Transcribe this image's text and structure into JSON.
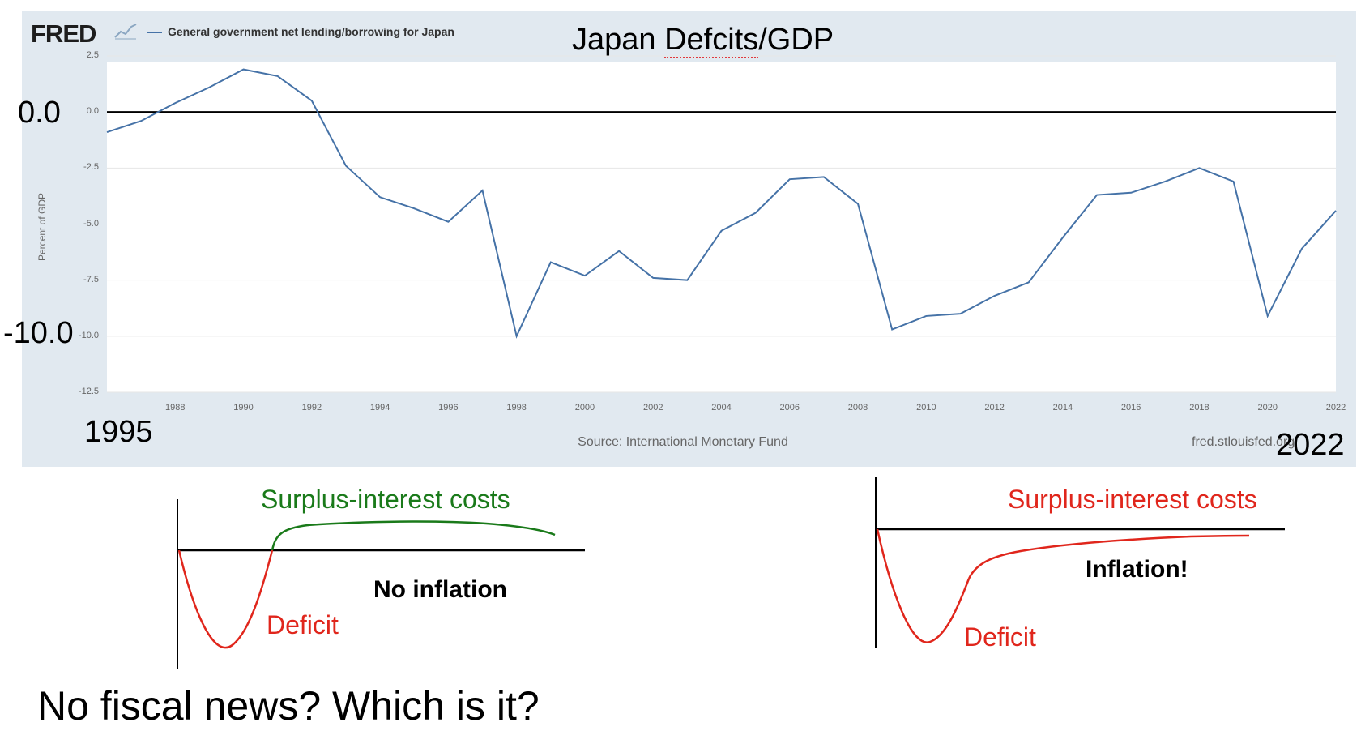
{
  "chart_data": {
    "type": "line",
    "title": "General government net lending/borrowing for Japan",
    "overlay_title": "Japan Defcits/GDP",
    "ylabel": "Percent of GDP",
    "source": "Source: International Monetary Fund",
    "site": "fred.stlouisfed.org",
    "brand": "FRED",
    "ylim": [
      -12.5,
      2.5
    ],
    "xlim": [
      1986,
      2022
    ],
    "yticks": [
      "2.5",
      "0.0",
      "-2.5",
      "-5.0",
      "-7.5",
      "-10.0",
      "-12.5"
    ],
    "xticks": [
      "1988",
      "1990",
      "1992",
      "1994",
      "1996",
      "1998",
      "2000",
      "2002",
      "2004",
      "2006",
      "2008",
      "2010",
      "2012",
      "2014",
      "2016",
      "2018",
      "2020",
      "2022"
    ],
    "grid": true,
    "line_color": "#4572a7",
    "series": [
      {
        "name": "General government net lending/borrowing for Japan",
        "x": [
          1986,
          1987,
          1988,
          1989,
          1990,
          1991,
          1992,
          1993,
          1994,
          1995,
          1996,
          1997,
          1998,
          1999,
          2000,
          2001,
          2002,
          2003,
          2004,
          2005,
          2006,
          2007,
          2008,
          2009,
          2010,
          2011,
          2012,
          2013,
          2014,
          2015,
          2016,
          2017,
          2018,
          2019,
          2020,
          2021,
          2022
        ],
        "y": [
          -0.9,
          -0.4,
          0.4,
          1.1,
          1.9,
          1.6,
          0.5,
          -2.4,
          -3.8,
          -4.3,
          -4.9,
          -3.5,
          -10.0,
          -6.7,
          -7.3,
          -6.2,
          -7.4,
          -7.5,
          -5.3,
          -4.5,
          -3.0,
          -2.9,
          -4.1,
          -9.7,
          -9.1,
          -9.0,
          -8.2,
          -7.6,
          -5.6,
          -3.7,
          -3.6,
          -3.1,
          -2.5,
          -3.1,
          -9.1,
          -6.1,
          -4.4
        ]
      }
    ],
    "annotations": {
      "zero_label": "0.0",
      "minus10_label": "-10.0",
      "start_label": "1995",
      "end_label": "2022"
    }
  },
  "diagram_left": {
    "surplus_label": "Surplus-interest costs",
    "surplus_color": "#1a7a1a",
    "deficit_label": "Deficit",
    "deficit_color": "#e0261c",
    "note": "No inflation"
  },
  "diagram_right": {
    "surplus_label": "Surplus-interest costs",
    "surplus_color": "#e0261c",
    "deficit_label": "Deficit",
    "deficit_color": "#e0261c",
    "note": "Inflation!"
  },
  "question": "No fiscal news? Which is it?"
}
